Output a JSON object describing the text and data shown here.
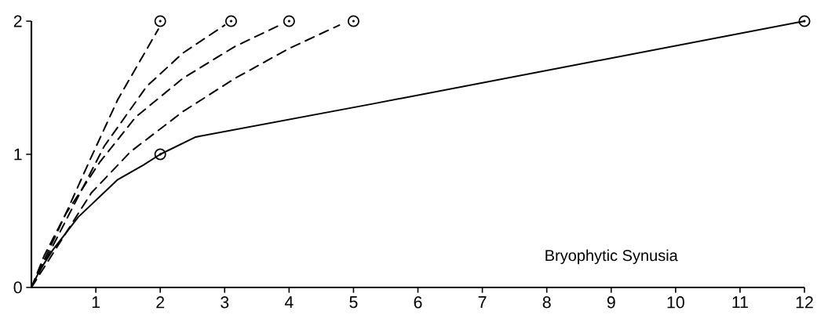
{
  "chart_data": {
    "type": "line",
    "xlabel": "Bryophytic Synusia",
    "xlim": [
      0,
      12
    ],
    "ylim": [
      0,
      2
    ],
    "xticks": [
      1,
      2,
      3,
      4,
      5,
      6,
      7,
      8,
      9,
      10,
      11,
      12
    ],
    "yticks": [
      0,
      1,
      2
    ],
    "grid": false,
    "series": [
      {
        "color": "#000000",
        "line_style": "solid",
        "marker": "none",
        "x": [
          0,
          0.12,
          0.33,
          0.73,
          1.34,
          1.74,
          2,
          2.55,
          5.31,
          12
        ],
        "values": [
          0,
          0.12,
          0.28,
          0.53,
          0.81,
          0.92,
          1,
          1.13,
          1.38,
          2
        ]
      },
      {
        "color": "#000000",
        "line_style": "dashed",
        "marker": "none",
        "x": [
          0,
          0.2,
          0.53,
          0.93,
          1.34,
          1.97
        ],
        "values": [
          0,
          0.24,
          0.55,
          0.98,
          1.41,
          1.94
        ]
      },
      {
        "color": "#000000",
        "line_style": "dashed",
        "marker": "none",
        "x": [
          0,
          0.65,
          1.13,
          1.79,
          2.35,
          3.0
        ],
        "values": [
          0,
          0.61,
          1.06,
          1.51,
          1.76,
          1.97
        ]
      },
      {
        "color": "#000000",
        "line_style": "dashed",
        "marker": "none",
        "x": [
          0,
          0.53,
          1.06,
          1.62,
          2.35,
          3.16,
          3.9
        ],
        "values": [
          0,
          0.55,
          0.94,
          1.28,
          1.57,
          1.81,
          1.98
        ]
      },
      {
        "color": "#000000",
        "line_style": "dashed",
        "marker": "none",
        "x": [
          0,
          0.93,
          1.54,
          2.35,
          3.16,
          3.98,
          4.78
        ],
        "values": [
          0,
          0.71,
          1.02,
          1.32,
          1.57,
          1.79,
          1.97
        ]
      },
      {
        "type": "scatter",
        "color": "#000000",
        "marker": "circle",
        "x": [
          2,
          2,
          3.1,
          4,
          5,
          12
        ],
        "values": [
          1,
          2,
          2,
          2,
          2,
          2
        ]
      }
    ]
  }
}
